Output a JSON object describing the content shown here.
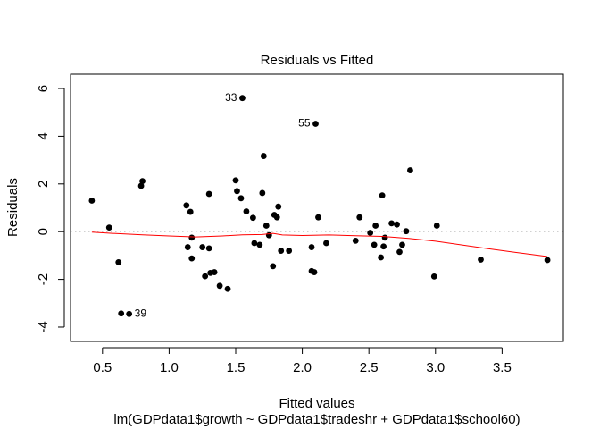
{
  "chart_data": {
    "type": "scatter",
    "title": "Residuals vs Fitted",
    "xlabel": "Fitted values",
    "sublabel": "lm(GDPdata1$growth ~ GDPdata1$tradeshr + GDPdata1$school60)",
    "ylabel": "Residuals",
    "xlim": [
      0.26,
      3.96
    ],
    "ylim": [
      -4.6,
      6.6
    ],
    "x_ticks": [
      0.5,
      1.0,
      1.5,
      2.0,
      2.5,
      3.0,
      3.5
    ],
    "x_tick_labels": [
      "0.5",
      "1.0",
      "1.5",
      "2.0",
      "2.5",
      "3.0",
      "3.5"
    ],
    "y_ticks": [
      -4,
      -2,
      0,
      2,
      4,
      6
    ],
    "y_tick_labels": [
      "-4",
      "-2",
      "0",
      "2",
      "4",
      "6"
    ],
    "reference_line": {
      "y": 0,
      "style": "dotted",
      "color": "#c0c0c0"
    },
    "smoother_color": "#ff0000",
    "point_color": "#000000",
    "points": [
      [
        0.42,
        1.3
      ],
      [
        0.55,
        0.17
      ],
      [
        0.62,
        -1.28
      ],
      [
        0.64,
        -3.43
      ],
      [
        0.7,
        -3.45
      ],
      [
        0.79,
        1.92
      ],
      [
        0.8,
        2.12
      ],
      [
        1.13,
        1.1
      ],
      [
        1.14,
        -0.65
      ],
      [
        1.16,
        0.83
      ],
      [
        1.17,
        -0.25
      ],
      [
        1.17,
        -1.12
      ],
      [
        1.25,
        -0.65
      ],
      [
        1.27,
        -1.87
      ],
      [
        1.3,
        -0.7
      ],
      [
        1.3,
        1.58
      ],
      [
        1.31,
        -1.73
      ],
      [
        1.34,
        -1.7
      ],
      [
        1.38,
        -2.27
      ],
      [
        1.44,
        -2.4
      ],
      [
        1.5,
        2.15
      ],
      [
        1.51,
        1.7
      ],
      [
        1.54,
        1.4
      ],
      [
        1.55,
        5.6
      ],
      [
        1.58,
        0.85
      ],
      [
        1.63,
        0.58
      ],
      [
        1.64,
        -0.48
      ],
      [
        1.68,
        -0.55
      ],
      [
        1.7,
        1.62
      ],
      [
        1.71,
        3.17
      ],
      [
        1.73,
        0.25
      ],
      [
        1.75,
        -0.15
      ],
      [
        1.78,
        -1.45
      ],
      [
        1.79,
        0.7
      ],
      [
        1.81,
        0.6
      ],
      [
        1.82,
        1.05
      ],
      [
        1.84,
        -0.8
      ],
      [
        1.9,
        -0.8
      ],
      [
        2.07,
        -0.65
      ],
      [
        2.07,
        -1.65
      ],
      [
        2.09,
        -1.7
      ],
      [
        2.1,
        4.52
      ],
      [
        2.12,
        0.6
      ],
      [
        2.18,
        -0.48
      ],
      [
        2.4,
        -0.38
      ],
      [
        2.43,
        0.6
      ],
      [
        2.51,
        -0.05
      ],
      [
        2.54,
        -0.55
      ],
      [
        2.55,
        0.25
      ],
      [
        2.59,
        -1.08
      ],
      [
        2.6,
        1.52
      ],
      [
        2.61,
        -0.62
      ],
      [
        2.62,
        -0.25
      ],
      [
        2.67,
        0.35
      ],
      [
        2.71,
        0.3
      ],
      [
        2.73,
        -0.85
      ],
      [
        2.75,
        -0.55
      ],
      [
        2.78,
        0.02
      ],
      [
        2.81,
        2.57
      ],
      [
        2.99,
        -1.88
      ],
      [
        3.01,
        0.25
      ],
      [
        3.34,
        -1.17
      ],
      [
        3.84,
        -1.19
      ]
    ],
    "labeled_points": [
      {
        "label": "33",
        "x": 1.55,
        "y": 5.6
      },
      {
        "label": "55",
        "x": 2.1,
        "y": 4.52
      },
      {
        "label": "39",
        "x": 0.7,
        "y": -3.45
      }
    ],
    "smoother": [
      [
        0.42,
        -0.02
      ],
      [
        0.6,
        -0.08
      ],
      [
        0.8,
        -0.13
      ],
      [
        1.0,
        -0.18
      ],
      [
        1.2,
        -0.22
      ],
      [
        1.4,
        -0.18
      ],
      [
        1.55,
        -0.13
      ],
      [
        1.7,
        -0.12
      ],
      [
        1.78,
        -0.07
      ],
      [
        1.85,
        -0.14
      ],
      [
        2.0,
        -0.16
      ],
      [
        2.2,
        -0.14
      ],
      [
        2.4,
        -0.17
      ],
      [
        2.6,
        -0.2
      ],
      [
        2.8,
        -0.28
      ],
      [
        3.0,
        -0.4
      ],
      [
        3.2,
        -0.56
      ],
      [
        3.4,
        -0.72
      ],
      [
        3.6,
        -0.87
      ],
      [
        3.84,
        -1.04
      ]
    ]
  }
}
